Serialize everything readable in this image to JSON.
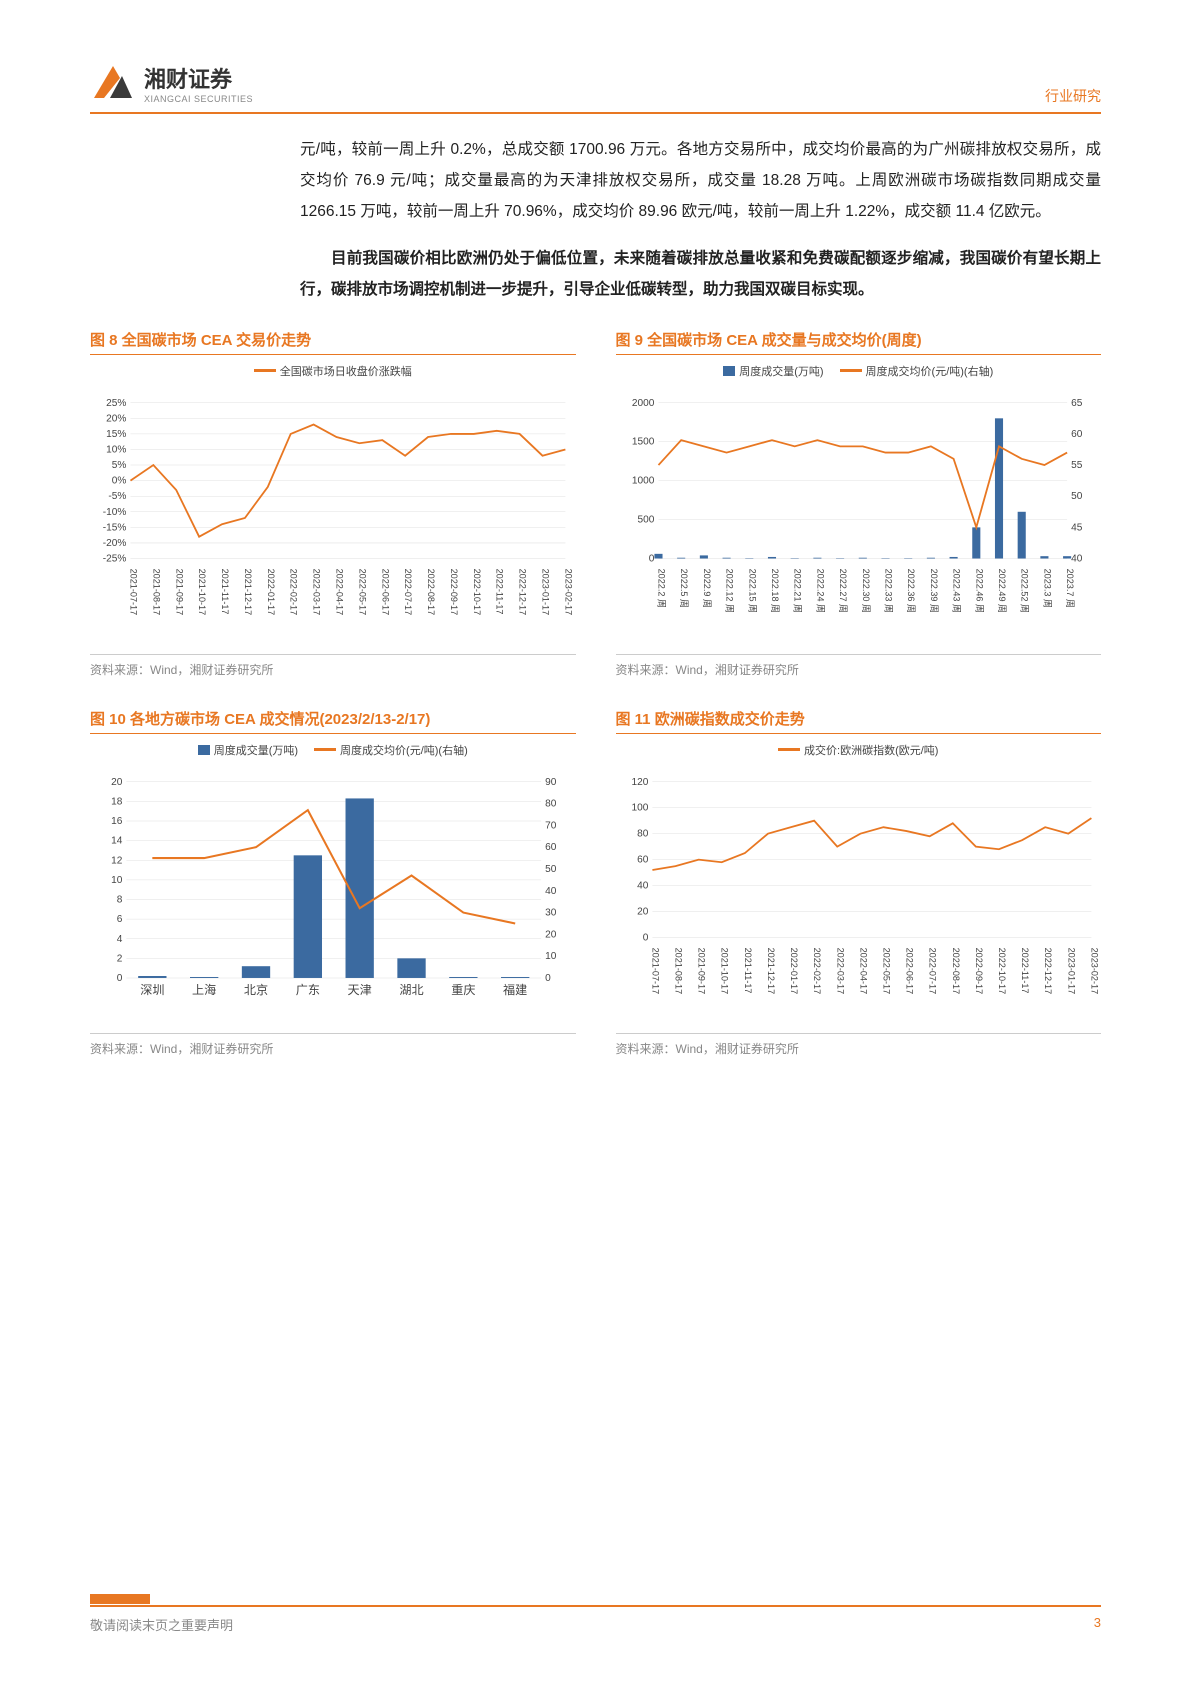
{
  "header": {
    "logo_cn": "湘财证券",
    "logo_en": "XIANGCAI SECURITIES",
    "right_label": "行业研究",
    "logo_colors": {
      "orange": "#e87722",
      "dark": "#3a3a3a"
    }
  },
  "body": {
    "para1": "元/吨，较前一周上升 0.2%，总成交额 1700.96 万元。各地方交易所中，成交均价最高的为广州碳排放权交易所，成交均价 76.9 元/吨；成交量最高的为天津排放权交易所，成交量 18.28 万吨。上周欧洲碳市场碳指数同期成交量 1266.15 万吨，较前一周上升 70.96%，成交均价 89.96 欧元/吨，较前一周上升 1.22%，成交额 11.4 亿欧元。",
    "para2_bold": "目前我国碳价相比欧洲仍处于偏低位置，未来随着碳排放总量收紧和免费碳配额逐步缩减，我国碳价有望长期上行，碳排放市场调控机制进一步提升，引导企业低碳转型，助力我国双碳目标实现。"
  },
  "charts": {
    "source_text": "资料来源：Wind，湘财证券研究所",
    "colors": {
      "line": "#e87722",
      "bar": "#3b6aa0",
      "axis": "#666666",
      "grid": "#e0e0e0",
      "bg": "#ffffff",
      "text": "#444444"
    },
    "fig8": {
      "title": "图 8 全国碳市场 CEA 交易价走势",
      "type": "line",
      "legend": "全国碳市场日收盘价涨跌幅",
      "ylim": [
        -25,
        25
      ],
      "ytick_step": 5,
      "y_suffix": "%",
      "x_labels": [
        "2021-07-17",
        "2021-08-17",
        "2021-09-17",
        "2021-10-17",
        "2021-11-17",
        "2021-12-17",
        "2022-01-17",
        "2022-02-17",
        "2022-03-17",
        "2022-04-17",
        "2022-05-17",
        "2022-06-17",
        "2022-07-17",
        "2022-08-17",
        "2022-09-17",
        "2022-10-17",
        "2022-11-17",
        "2022-12-17",
        "2023-01-17",
        "2023-02-17"
      ],
      "values": [
        0,
        5,
        -3,
        -18,
        -14,
        -12,
        -2,
        15,
        18,
        14,
        12,
        13,
        8,
        14,
        15,
        15,
        16,
        15,
        8,
        10
      ]
    },
    "fig9": {
      "title": "图 9 全国碳市场 CEA 成交量与成交均价(周度)",
      "type": "bar+line",
      "legend_bar": "周度成交量(万吨)",
      "legend_line": "周度成交均价(元/吨)(右轴)",
      "yl": {
        "lim": [
          0,
          2000
        ],
        "step": 500
      },
      "yr": {
        "lim": [
          40,
          65
        ],
        "step": 5
      },
      "x_labels": [
        "2022.2 周",
        "2022.5 周",
        "2022.9 周",
        "2022.12 周",
        "2022.15 周",
        "2022.18 周",
        "2022.21 周",
        "2022.24 周",
        "2022.27 周",
        "2022.30 周",
        "2022.33 周",
        "2022.36 周",
        "2022.39 周",
        "2022.43 周",
        "2022.46 周",
        "2022.49 周",
        "2022.52 周",
        "2023.3 周",
        "2023.7 周"
      ],
      "bar_values": [
        60,
        10,
        40,
        10,
        5,
        20,
        5,
        10,
        5,
        10,
        5,
        5,
        10,
        20,
        400,
        1800,
        600,
        30,
        30
      ],
      "line_values": [
        55,
        59,
        58,
        57,
        58,
        59,
        58,
        59,
        58,
        58,
        57,
        57,
        58,
        56,
        45,
        58,
        56,
        55,
        57
      ]
    },
    "fig10": {
      "title": "图 10 各地方碳市场 CEA 成交情况(2023/2/13-2/17)",
      "type": "bar+line",
      "legend_bar": "周度成交量(万吨)",
      "legend_line": "周度成交均价(元/吨)(右轴)",
      "yl": {
        "lim": [
          0,
          20
        ],
        "step": 2
      },
      "yr": {
        "lim": [
          0,
          90
        ],
        "step": 10
      },
      "categories": [
        "深圳",
        "上海",
        "北京",
        "广东",
        "天津",
        "湖北",
        "重庆",
        "福建"
      ],
      "bar_values": [
        0.2,
        0.1,
        1.2,
        12.5,
        18.3,
        2.0,
        0.1,
        0.1
      ],
      "line_values": [
        55,
        55,
        60,
        77,
        32,
        47,
        30,
        25
      ]
    },
    "fig11": {
      "title": "图 11 欧洲碳指数成交价走势",
      "type": "line",
      "legend": "成交价:欧洲碳指数(欧元/吨)",
      "ylim": [
        0,
        120
      ],
      "ytick_step": 20,
      "x_labels": [
        "2021-07-17",
        "2021-08-17",
        "2021-09-17",
        "2021-10-17",
        "2021-11-17",
        "2021-12-17",
        "2022-01-17",
        "2022-02-17",
        "2022-03-17",
        "2022-04-17",
        "2022-05-17",
        "2022-06-17",
        "2022-07-17",
        "2022-08-17",
        "2022-09-17",
        "2022-10-17",
        "2022-11-17",
        "2022-12-17",
        "2023-01-17",
        "2023-02-17"
      ],
      "values": [
        52,
        55,
        60,
        58,
        65,
        80,
        85,
        90,
        70,
        80,
        85,
        82,
        78,
        88,
        70,
        68,
        75,
        85,
        80,
        92
      ]
    }
  },
  "footer": {
    "left": "敬请阅读末页之重要声明",
    "page_num": "3"
  }
}
